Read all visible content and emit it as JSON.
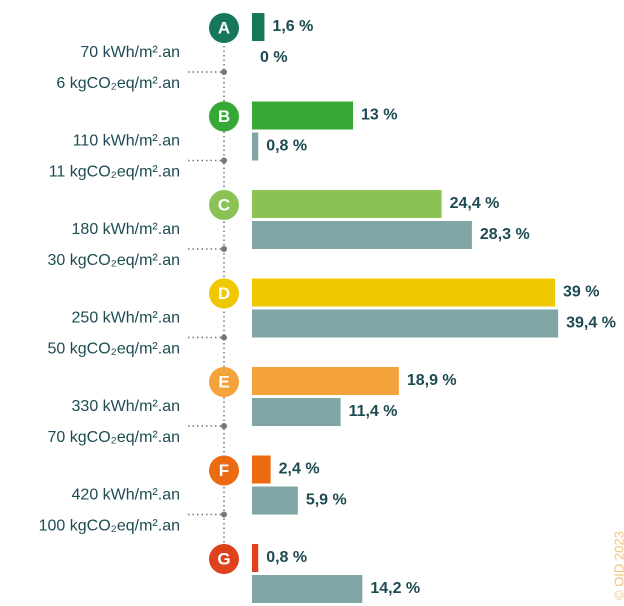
{
  "chart_data": {
    "type": "energy-label-bars",
    "categories": [
      "A",
      "B",
      "C",
      "D",
      "E",
      "F",
      "G"
    ],
    "category_colors": [
      "#16775a",
      "#35a836",
      "#8bc255",
      "#f0c800",
      "#f4a23a",
      "#ec6b12",
      "#e0411d"
    ],
    "series": [
      {
        "colors": [
          "#16775a",
          "#35a836",
          "#8bc255",
          "#f0c800",
          "#f4a23a",
          "#ec6b12",
          "#e0411d"
        ],
        "values": [
          1.6,
          13,
          24.4,
          39,
          18.9,
          2.4,
          0.8
        ],
        "value_labels": [
          "1,6 %",
          "13 %",
          "24,4 %",
          "39 %",
          "18,9 %",
          "2,4 %",
          "0,8 %"
        ]
      },
      {
        "color": "#7fa6a4",
        "values": [
          0,
          0.8,
          28.3,
          39.4,
          11.4,
          5.9,
          14.2
        ],
        "value_labels": [
          "0 %",
          "0,8 %",
          "28,3 %",
          "39,4 %",
          "11,4 %",
          "5,9 %",
          "14,2 %"
        ]
      }
    ],
    "thresholds": [
      {
        "energy": "70 kWh/m².an",
        "ghg": "6 kgCO₂eq/m².an"
      },
      {
        "energy": "110 kWh/m².an",
        "ghg": "11 kgCO₂eq/m².an"
      },
      {
        "energy": "180 kWh/m².an",
        "ghg": "30 kgCO₂eq/m².an"
      },
      {
        "energy": "250 kWh/m².an",
        "ghg": "50 kgCO₂eq/m².an"
      },
      {
        "energy": "330 kWh/m².an",
        "ghg": "70 kgCO₂eq/m².an"
      },
      {
        "energy": "420 kWh/m².an",
        "ghg": "100 kgCO₂eq/m².an"
      }
    ],
    "copyright": "© OID 2023"
  }
}
